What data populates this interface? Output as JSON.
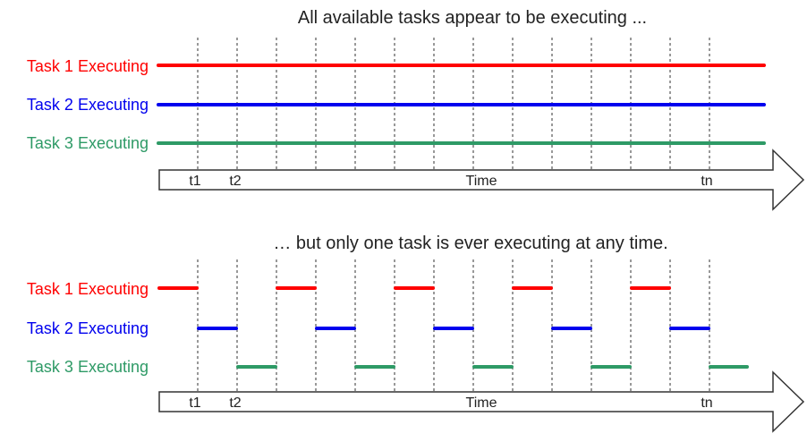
{
  "colors": {
    "task1": "#ff0000",
    "task2": "#0000ee",
    "task3": "#2e9a66"
  },
  "top": {
    "caption": "All available tasks appear to be executing ...",
    "tasks": [
      {
        "label": "Task 1 Executing",
        "color_key": "task1"
      },
      {
        "label": "Task 2 Executing",
        "color_key": "task2"
      },
      {
        "label": "Task 3 Executing",
        "color_key": "task3"
      }
    ],
    "axis": {
      "t1": "t1",
      "t2": "t2",
      "time": "Time",
      "tn": "tn"
    }
  },
  "bottom": {
    "caption": "… but only one task is ever executing at any time.",
    "tasks": [
      {
        "label": "Task 1 Executing",
        "color_key": "task1",
        "slots": [
          0,
          3,
          6,
          9,
          12
        ]
      },
      {
        "label": "Task 2 Executing",
        "color_key": "task2",
        "slots": [
          1,
          4,
          7,
          10,
          13
        ]
      },
      {
        "label": "Task 3 Executing",
        "color_key": "task3",
        "slots": [
          2,
          5,
          8,
          11,
          14
        ]
      }
    ],
    "axis": {
      "t1": "t1",
      "t2": "t2",
      "time": "Time",
      "tn": "tn"
    }
  }
}
